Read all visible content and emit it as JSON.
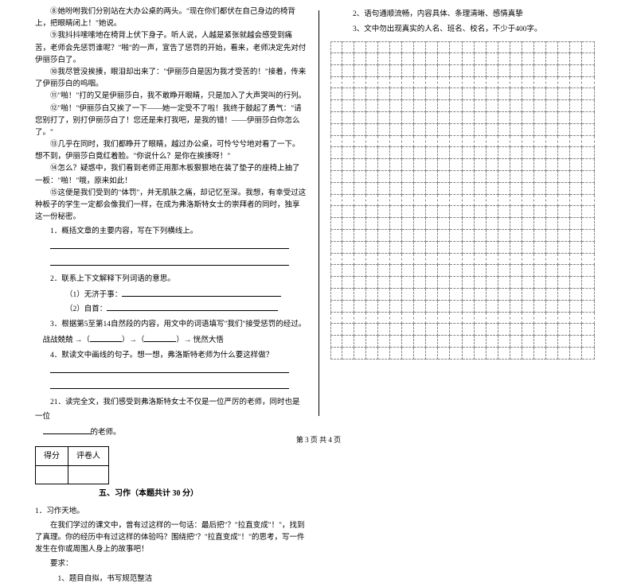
{
  "left": {
    "story": [
      "⑧她吩咐我们分别站在大办公桌的两头。\"现在你们都伏在自己身边的椅背上，把眼睛闭上！\"她说。",
      "⑨我抖抖嗦嗦地在椅背上伏下身子。听人说，人越是紧张就越会感受到痛苦，老师会先惩罚谁呢？\"啪\"的一声，宣告了惩罚的开始，看来，老师决定先对付伊丽莎白了。",
      "⑩我尽管没挨揍，眼泪却出来了：\"伊丽莎白是因为我才受苦的！\"接着，传来了伊丽莎白的呜咽。",
      "⑪\"啪！\"打的又是伊丽莎白，我不敢睁开眼睛，只是加入了大声哭叫的行列。",
      "⑫\"啪！\"伊丽莎白又挨了一下——她一定受不了啦！我终于鼓起了勇气：\"请您别打了，别打伊丽莎白了！您还是来打我吧，是我的错！——伊丽莎白你怎么了。\"",
      "⑬几乎在同时，我们都睁开了眼睛，越过办公桌，可怜兮兮地对看了一下。想不到，伊丽莎白竟红着脸。\"你说什么？是你在挨揍呀！\"",
      "⑭怎么？疑惑中，我们看到老师正用那木板狠狠地在装了垫子的座椅上抽了一板：\"啪！\"哦，原来如此！",
      "⑮这便是我们受到的\"体罚\"，并无肌肤之痛，却记忆至深。我想，有幸受过这种板子的学生一定都会像我们一样，在成为弗洛斯特女士的崇拜者的同时，独享这一份秘密。"
    ],
    "q1_label": "1．概括文章的主要内容，写在下列横线上。",
    "q2_label": "2．联系上下文解释下列词语的意思。",
    "q2a": "（1）无济于事：",
    "q2b": "（2）自首：",
    "q3_label": "3．根据第5至第14自然段的内容，用文中的词语填写\"我们\"接受惩罚的经过。",
    "q3_flow_a": "战战兢兢 →（",
    "q3_flow_b": "）→（",
    "q3_flow_c": "）→ 恍然大悟",
    "q4_label": "4．默读文中画线的句子。想一想，弗洛斯特老师为什么要这样做？",
    "q21_label": "21．读完全文，我们感受到弗洛斯特女士不仅是一位严厉的老师，同时也是一位",
    "q21_suffix": "的老师。",
    "scorebox": {
      "l": "得分",
      "r": "评卷人"
    },
    "section_title": "五、习作（本题共计 30 分）",
    "essay_label": "1．习作天地。",
    "essay_body1": "在我们学过的课文中，曾有过这样的一句话：最后把\"？\"拉直变成\"！\"，找到了真理。你的经历中有过这样的体验吗？围绕把\"？\"拉直变成\"！\"的思考，写一件发生在你或周围人身上的故事吧！",
    "essay_req_label": "要求：",
    "essay_req1": "1、题目自拟，书写规范整洁"
  },
  "right": {
    "req2": "2、语句通顺流畅，内容具体、条理清晰、感情真挚",
    "req3": "3、文中勿出现真实的人名、班名、校名，不少于400字。"
  },
  "grid": {
    "cols": 22,
    "rows": 27
  },
  "footer": "第 3 页  共 4 页"
}
